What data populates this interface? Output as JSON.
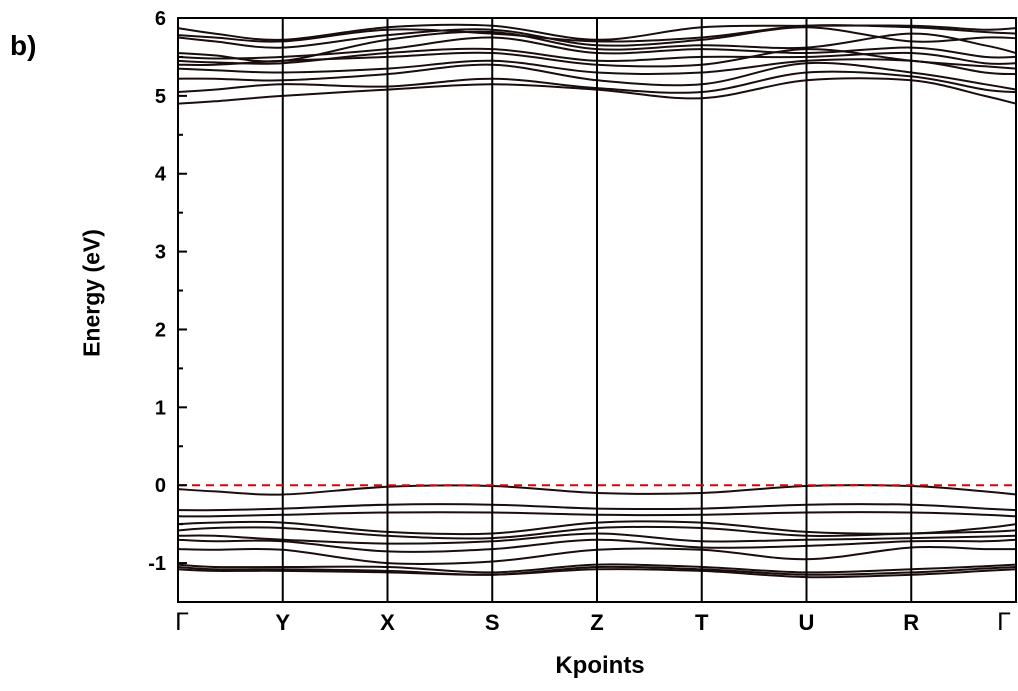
{
  "panel_label": "b)",
  "chart_data": {
    "type": "line",
    "title": "",
    "xlabel": "Kpoints",
    "ylabel": "Energy (eV)",
    "ylim": [
      -1.5,
      6
    ],
    "yticks": [
      -1,
      0,
      1,
      2,
      3,
      4,
      5,
      6
    ],
    "grid": false,
    "fermi_level": {
      "value": 0,
      "color": "#e00000",
      "style": "dashed"
    },
    "line_color": "#1a0d0d",
    "x_ticks": [
      {
        "label": "Γ",
        "x": 0
      },
      {
        "label": "Y",
        "x": 1
      },
      {
        "label": "X",
        "x": 2
      },
      {
        "label": "S",
        "x": 3
      },
      {
        "label": "Z",
        "x": 4
      },
      {
        "label": "T",
        "x": 5
      },
      {
        "label": "U",
        "x": 6
      },
      {
        "label": "R",
        "x": 7
      },
      {
        "label": "Γ",
        "x": 8
      }
    ],
    "x": [
      0,
      0.35,
      1,
      2,
      3,
      4,
      5,
      6,
      7,
      7.7,
      8
    ],
    "series": [
      {
        "values": [
          5.87,
          5.8,
          5.72,
          5.88,
          5.9,
          5.72,
          5.88,
          5.9,
          5.9,
          5.85,
          5.87
        ]
      },
      {
        "values": [
          5.78,
          5.75,
          5.7,
          5.85,
          5.8,
          5.7,
          5.75,
          5.9,
          5.88,
          5.82,
          5.8
        ]
      },
      {
        "values": [
          5.75,
          5.7,
          5.62,
          5.78,
          5.85,
          5.65,
          5.72,
          5.88,
          5.7,
          5.75,
          5.74
        ]
      },
      {
        "values": [
          5.55,
          5.52,
          5.45,
          5.72,
          5.82,
          5.6,
          5.65,
          5.62,
          5.8,
          5.65,
          5.55
        ]
      },
      {
        "values": [
          5.5,
          5.48,
          5.5,
          5.6,
          5.75,
          5.55,
          5.6,
          5.55,
          5.62,
          5.5,
          5.5
        ]
      },
      {
        "values": [
          5.45,
          5.43,
          5.42,
          5.55,
          5.6,
          5.45,
          5.5,
          5.5,
          5.55,
          5.42,
          5.42
        ]
      },
      {
        "values": [
          5.4,
          5.4,
          5.45,
          5.5,
          5.55,
          5.4,
          5.4,
          5.6,
          5.45,
          5.38,
          5.35
        ]
      },
      {
        "values": [
          5.35,
          5.33,
          5.3,
          5.35,
          5.45,
          5.3,
          5.3,
          5.45,
          5.45,
          5.3,
          5.28
        ]
      },
      {
        "values": [
          5.22,
          5.22,
          5.2,
          5.28,
          5.4,
          5.2,
          5.15,
          5.42,
          5.3,
          5.15,
          5.08
        ]
      },
      {
        "values": [
          5.05,
          5.08,
          5.15,
          5.12,
          5.22,
          5.1,
          5.05,
          5.3,
          5.25,
          5.08,
          5.05
        ]
      },
      {
        "values": [
          4.9,
          4.93,
          5.0,
          5.08,
          5.15,
          5.08,
          4.97,
          5.2,
          5.2,
          5.0,
          4.9
        ]
      },
      {
        "values": [
          -0.05,
          -0.08,
          -0.12,
          -0.02,
          -0.01,
          -0.1,
          -0.1,
          -0.01,
          -0.01,
          -0.08,
          -0.12
        ]
      },
      {
        "values": [
          -0.32,
          -0.32,
          -0.3,
          -0.25,
          -0.25,
          -0.3,
          -0.3,
          -0.25,
          -0.25,
          -0.3,
          -0.32
        ]
      },
      {
        "values": [
          -0.4,
          -0.4,
          -0.38,
          -0.35,
          -0.35,
          -0.38,
          -0.38,
          -0.35,
          -0.35,
          -0.38,
          -0.4
        ]
      },
      {
        "values": [
          -0.5,
          -0.48,
          -0.48,
          -0.6,
          -0.62,
          -0.48,
          -0.48,
          -0.6,
          -0.62,
          -0.55,
          -0.5
        ]
      },
      {
        "values": [
          -0.58,
          -0.55,
          -0.55,
          -0.65,
          -0.68,
          -0.55,
          -0.55,
          -0.65,
          -0.62,
          -0.6,
          -0.58
        ]
      },
      {
        "values": [
          -0.65,
          -0.65,
          -0.7,
          -0.75,
          -0.72,
          -0.62,
          -0.72,
          -0.7,
          -0.68,
          -0.66,
          -0.65
        ]
      },
      {
        "values": [
          -0.7,
          -0.72,
          -0.72,
          -0.85,
          -0.82,
          -0.7,
          -0.8,
          -0.78,
          -0.72,
          -0.72,
          -0.7
        ]
      },
      {
        "values": [
          -0.82,
          -0.83,
          -0.83,
          -1.0,
          -0.98,
          -0.83,
          -0.83,
          -0.95,
          -0.8,
          -0.82,
          -0.82
        ]
      },
      {
        "values": [
          -1.02,
          -1.05,
          -1.05,
          -1.05,
          -1.12,
          -1.02,
          -1.05,
          -1.12,
          -1.08,
          -1.04,
          -1.02
        ]
      },
      {
        "values": [
          -1.05,
          -1.08,
          -1.08,
          -1.1,
          -1.15,
          -1.05,
          -1.08,
          -1.15,
          -1.12,
          -1.07,
          -1.05
        ]
      },
      {
        "values": [
          -1.08,
          -1.1,
          -1.1,
          -1.12,
          -1.15,
          -1.08,
          -1.1,
          -1.18,
          -1.15,
          -1.1,
          -1.08
        ]
      }
    ]
  }
}
